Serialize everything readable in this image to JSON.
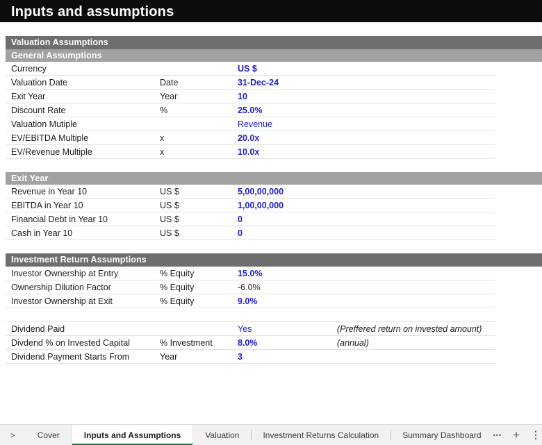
{
  "title": "Inputs and assumptions",
  "colors": {
    "input_blue": "#1f1fc8",
    "header_dark_gray": "#6e6e6e",
    "header_light_gray": "#a2a2a2",
    "active_tab_green": "#217346",
    "title_bar_black": "#0c0c0c"
  },
  "sections": [
    {
      "id": "valuation-assumptions",
      "headers": [
        {
          "label": "Valuation Assumptions",
          "tone": "dark"
        },
        {
          "label": "General Assumptions",
          "tone": "light"
        }
      ],
      "rows": [
        {
          "label": "Currency",
          "unit": "",
          "value": "US $",
          "value_style": "input-bold",
          "note": ""
        },
        {
          "label": "Valuation Date",
          "unit": "Date",
          "value": "31-Dec-24",
          "value_style": "input-bold",
          "note": ""
        },
        {
          "label": "Exit Year",
          "unit": "Year",
          "value": "10",
          "value_style": "input-bold",
          "note": ""
        },
        {
          "label": "Discount Rate",
          "unit": "%",
          "value": "25.0%",
          "value_style": "input-bold",
          "note": ""
        },
        {
          "label": "Valuation Mutiple",
          "unit": "",
          "value": "Revenue",
          "value_style": "input-regular",
          "note": ""
        },
        {
          "label": "EV/EBITDA Multiple",
          "unit": "x",
          "value": "20.0x",
          "value_style": "input-bold",
          "note": ""
        },
        {
          "label": "EV/Revenue Multiple",
          "unit": "x",
          "value": "10.0x",
          "value_style": "input-bold",
          "note": ""
        }
      ]
    },
    {
      "id": "exit-year",
      "headers": [
        {
          "label": "Exit Year",
          "tone": "light"
        }
      ],
      "rows": [
        {
          "label": "Revenue in Year 10",
          "unit": "US $",
          "value": "5,00,00,000",
          "value_style": "input-bold",
          "note": ""
        },
        {
          "label": "EBITDA in Year 10",
          "unit": "US $",
          "value": "1,00,00,000",
          "value_style": "input-bold",
          "note": ""
        },
        {
          "label": "Financial Debt in Year 10",
          "unit": "US $",
          "value": "0",
          "value_style": "input-bold",
          "note": ""
        },
        {
          "label": "Cash in Year 10",
          "unit": "US $",
          "value": "0",
          "value_style": "input-bold",
          "note": ""
        }
      ]
    },
    {
      "id": "investment-return-assumptions",
      "headers": [
        {
          "label": "Investment Return Assumptions",
          "tone": "dark"
        }
      ],
      "rows": [
        {
          "label": "Investor Ownership at Entry",
          "unit": "% Equity",
          "value": "15.0%",
          "value_style": "input-bold",
          "note": ""
        },
        {
          "label": "Ownership Dilution Factor",
          "unit": "% Equity",
          "value": "-6.0%",
          "value_style": "calc",
          "note": ""
        },
        {
          "label": "Investor Ownership at Exit",
          "unit": "% Equity",
          "value": "9.0%",
          "value_style": "input-bold",
          "note": ""
        }
      ]
    },
    {
      "id": "dividends",
      "headers": [],
      "rows": [
        {
          "label": "Dividend Paid",
          "unit": "",
          "value": "Yes",
          "value_style": "input-regular",
          "note": "(Preffered return on invested amount)"
        },
        {
          "label": "Divdend % on Invested Capital",
          "unit": "% Investment",
          "value": "8.0%",
          "value_style": "input-bold",
          "note": "(annual)"
        },
        {
          "label": "Dividend Payment Starts From",
          "unit": "Year",
          "value": "3",
          "value_style": "input-bold",
          "note": ""
        }
      ]
    }
  ],
  "sheet_tabs": {
    "nav_next_glyph": ">",
    "tabs": [
      {
        "id": "cover",
        "label": "Cover",
        "active": false
      },
      {
        "id": "inputs-and-assumptions",
        "label": "Inputs and Assumptions",
        "active": true
      },
      {
        "id": "valuation",
        "label": "Valuation",
        "active": false
      },
      {
        "id": "investment-returns-calculation",
        "label": "Investment Returns Calculation",
        "active": false
      },
      {
        "id": "summary-dashboard",
        "label": "Summary Dashboard",
        "active": false
      }
    ],
    "icons": {
      "more_tabs": "•••",
      "add_sheet": "+",
      "overflow_menu": "⋮"
    }
  }
}
